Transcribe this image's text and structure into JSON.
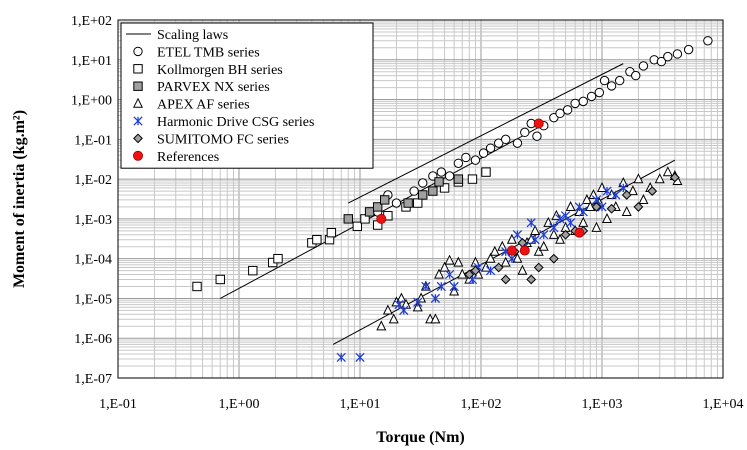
{
  "chart_data": {
    "type": "scatter",
    "title": "",
    "xlabel": "Torque (Nm)",
    "ylabel": "Moment of inertia (kg.m²)",
    "x_scale": "log",
    "y_scale": "log",
    "xlim": [
      0.1,
      10000
    ],
    "ylim": [
      1e-07,
      100
    ],
    "x_tick_labels": [
      "1,E-01",
      "1,E+00",
      "1,E+01",
      "1,E+02",
      "1,E+03",
      "1,E+04"
    ],
    "y_tick_labels": [
      "1,E+02",
      "1,E+01",
      "1,E+00",
      "1,E-01",
      "1,E-02",
      "1,E-03",
      "1,E-04",
      "1,E-05",
      "1,E-06",
      "1,E-07"
    ],
    "grid": true,
    "legend_position": "top-left",
    "legend": [
      "Scaling laws",
      "ETEL TMB series",
      "Kollmorgen BH series",
      "PARVEX NX series",
      "APEX AF series",
      "Harmonic Drive CSG series",
      "SUMITOMO FC series",
      "References"
    ],
    "series": [
      {
        "name": "Scaling laws",
        "marker": "line",
        "color": "#000000",
        "lines": [
          [
            [
              8,
              0.0025
            ],
            [
              1500,
              8
            ]
          ],
          [
            [
              0.7,
              1e-05
            ],
            [
              300,
              0.2
            ]
          ],
          [
            [
              6,
              7e-07
            ],
            [
              4000,
              0.03
            ]
          ]
        ]
      },
      {
        "name": "ETEL TMB series",
        "marker": "circle-open",
        "color": "#000000",
        "points": [
          [
            14,
            0.0015
          ],
          [
            17,
            0.004
          ],
          [
            20,
            0.0025
          ],
          [
            28,
            0.005
          ],
          [
            33,
            0.008
          ],
          [
            40,
            0.012
          ],
          [
            47,
            0.015
          ],
          [
            55,
            0.012
          ],
          [
            65,
            0.025
          ],
          [
            75,
            0.035
          ],
          [
            90,
            0.03
          ],
          [
            105,
            0.045
          ],
          [
            120,
            0.06
          ],
          [
            140,
            0.08
          ],
          [
            160,
            0.1
          ],
          [
            200,
            0.08
          ],
          [
            230,
            0.15
          ],
          [
            260,
            0.25
          ],
          [
            290,
            0.12
          ],
          [
            330,
            0.22
          ],
          [
            400,
            0.35
          ],
          [
            450,
            0.45
          ],
          [
            520,
            0.55
          ],
          [
            600,
            0.8
          ],
          [
            700,
            0.9
          ],
          [
            820,
            1.2
          ],
          [
            950,
            1.5
          ],
          [
            1050,
            3
          ],
          [
            1200,
            2.2
          ],
          [
            1400,
            3
          ],
          [
            1700,
            5
          ],
          [
            1900,
            4
          ],
          [
            2200,
            7
          ],
          [
            2700,
            10
          ],
          [
            3100,
            9
          ],
          [
            3500,
            12
          ],
          [
            4200,
            14
          ],
          [
            5200,
            18
          ],
          [
            7500,
            30
          ]
        ]
      },
      {
        "name": "Kollmorgen BH series",
        "marker": "square-open",
        "color": "#000000",
        "points": [
          [
            0.45,
            2e-05
          ],
          [
            0.7,
            3e-05
          ],
          [
            1.3,
            5e-05
          ],
          [
            1.9,
            8e-05
          ],
          [
            2.1,
            0.0001
          ],
          [
            4,
            0.00025
          ],
          [
            4.4,
            0.0003
          ],
          [
            5.6,
            0.0003
          ],
          [
            5.8,
            0.00045
          ],
          [
            9.5,
            0.00065
          ],
          [
            11,
            0.001
          ],
          [
            14,
            0.0007
          ],
          [
            17,
            0.0012
          ],
          [
            24,
            0.002
          ],
          [
            30,
            0.0025
          ],
          [
            50,
            0.006
          ],
          [
            65,
            0.0085
          ],
          [
            85,
            0.01
          ],
          [
            110,
            0.015
          ]
        ]
      },
      {
        "name": "PARVEX NX series",
        "marker": "square-filled",
        "color": "#a0a0a0",
        "points": [
          [
            8,
            0.001
          ],
          [
            12,
            0.0015
          ],
          [
            14,
            0.002
          ],
          [
            16,
            0.003
          ],
          [
            25,
            0.0025
          ],
          [
            33,
            0.004
          ],
          [
            40,
            0.005
          ],
          [
            45,
            0.0085
          ],
          [
            65,
            0.01
          ]
        ]
      },
      {
        "name": "APEX AF series",
        "marker": "triangle-open",
        "color": "#000000",
        "points": [
          [
            15,
            2e-06
          ],
          [
            17,
            5e-06
          ],
          [
            19,
            3e-06
          ],
          [
            20,
            8e-06
          ],
          [
            22,
            1e-05
          ],
          [
            24,
            7e-06
          ],
          [
            30,
            6e-06
          ],
          [
            32,
            1e-05
          ],
          [
            35,
            2e-05
          ],
          [
            38,
            3e-06
          ],
          [
            42,
            3e-06
          ],
          [
            45,
            4e-05
          ],
          [
            50,
            6e-05
          ],
          [
            55,
            9e-05
          ],
          [
            60,
            1.5e-05
          ],
          [
            65,
            8e-05
          ],
          [
            70,
            4e-05
          ],
          [
            80,
            3e-05
          ],
          [
            90,
            8e-05
          ],
          [
            95,
            4e-05
          ],
          [
            110,
            6e-05
          ],
          [
            120,
            0.0001
          ],
          [
            130,
            0.00015
          ],
          [
            150,
            0.0002
          ],
          [
            160,
            8e-05
          ],
          [
            180,
            0.0003
          ],
          [
            200,
            0.0001
          ],
          [
            220,
            5e-05
          ],
          [
            240,
            0.00025
          ],
          [
            260,
            0.0003
          ],
          [
            280,
            0.0005
          ],
          [
            300,
            0.00015
          ],
          [
            330,
            0.0002
          ],
          [
            360,
            0.0008
          ],
          [
            400,
            0.0004
          ],
          [
            420,
            0.0012
          ],
          [
            450,
            0.0003
          ],
          [
            500,
            0.0006
          ],
          [
            550,
            0.002
          ],
          [
            600,
            0.0005
          ],
          [
            650,
            0.0015
          ],
          [
            700,
            0.0008
          ],
          [
            750,
            0.003
          ],
          [
            800,
            0.002
          ],
          [
            850,
            0.004
          ],
          [
            900,
            0.0006
          ],
          [
            950,
            0.0025
          ],
          [
            1000,
            0.006
          ],
          [
            1100,
            0.001
          ],
          [
            1200,
            0.004
          ],
          [
            1300,
            0.002
          ],
          [
            1500,
            0.008
          ],
          [
            1600,
            0.0015
          ],
          [
            1800,
            0.005
          ],
          [
            2000,
            0.01
          ],
          [
            2200,
            0.003
          ],
          [
            2500,
            0.006
          ],
          [
            3000,
            0.01
          ],
          [
            3500,
            0.015
          ],
          [
            4000,
            0.012
          ],
          [
            4200,
            0.009
          ]
        ]
      },
      {
        "name": "Harmonic Drive CSG series",
        "marker": "asterisk",
        "color": "#1f3fd8",
        "points": [
          [
            7,
            3.3e-07
          ],
          [
            10,
            3.3e-07
          ],
          [
            21,
            7e-06
          ],
          [
            23,
            5e-06
          ],
          [
            30,
            8e-06
          ],
          [
            35,
            2e-05
          ],
          [
            42,
            1e-05
          ],
          [
            47,
            2e-05
          ],
          [
            55,
            4e-05
          ],
          [
            60,
            2e-05
          ],
          [
            85,
            3e-05
          ],
          [
            95,
            6e-05
          ],
          [
            120,
            5e-05
          ],
          [
            160,
            0.00015
          ],
          [
            180,
            0.0001
          ],
          [
            200,
            0.0004
          ],
          [
            230,
            0.0002
          ],
          [
            260,
            0.0008
          ],
          [
            280,
            0.0003
          ],
          [
            330,
            0.0004
          ],
          [
            400,
            0.0006
          ],
          [
            450,
            0.001
          ],
          [
            500,
            0.0012
          ],
          [
            550,
            0.0008
          ],
          [
            650,
            0.002
          ],
          [
            700,
            0.0015
          ],
          [
            900,
            0.003
          ],
          [
            1000,
            0.002
          ],
          [
            1100,
            0.005
          ],
          [
            1300,
            0.004
          ],
          [
            1500,
            0.006
          ]
        ]
      },
      {
        "name": "SUMITOMO FC series",
        "marker": "diamond-filled",
        "color": "#a0a0a0",
        "points": [
          [
            80,
            4e-05
          ],
          [
            90,
            5e-05
          ],
          [
            140,
            6e-05
          ],
          [
            160,
            3e-05
          ],
          [
            190,
            0.00015
          ],
          [
            220,
            0.00025
          ],
          [
            260,
            3e-05
          ],
          [
            300,
            6e-05
          ],
          [
            400,
            0.0001
          ],
          [
            500,
            0.0004
          ],
          [
            600,
            0.0005
          ],
          [
            700,
            0.0005
          ],
          [
            900,
            0.002
          ],
          [
            1200,
            0.0018
          ],
          [
            1600,
            0.004
          ],
          [
            2000,
            0.002
          ],
          [
            2600,
            0.005
          ],
          [
            4000,
            0.011
          ]
        ]
      },
      {
        "name": "References",
        "marker": "circle-filled",
        "color": "#ee1111",
        "points": [
          [
            15,
            0.001
          ],
          [
            180,
            0.00016
          ],
          [
            230,
            0.00016
          ],
          [
            300,
            0.25
          ],
          [
            650,
            0.00045
          ]
        ]
      }
    ]
  }
}
